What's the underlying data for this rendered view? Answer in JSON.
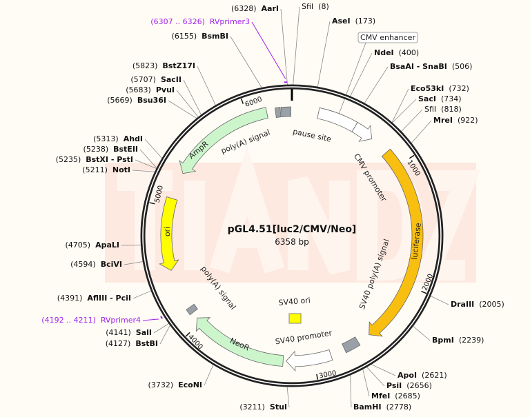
{
  "plasmid": {
    "name": "pGL4.51[luc2/CMV/Neo]",
    "size_label": "6358 bp",
    "length": 6358
  },
  "watermark": "TIANDZ",
  "colors": {
    "ring": "#222222",
    "green": "#ccf5cc",
    "yellow": "#ffff00",
    "luciferase": "#f9bf10",
    "grey": "#9aa0a8",
    "white": "#ffffff",
    "primer": "#a020f0",
    "watermark": "#fde8df"
  },
  "ticks": [
    1000,
    2000,
    3000,
    4000,
    5000,
    6000
  ],
  "features": [
    {
      "label": "CMV enhancer",
      "start": 215,
      "end": 530,
      "direction": "none",
      "color": "white",
      "boxed": true
    },
    {
      "label": "CMV promoter",
      "start": 530,
      "end": 697,
      "direction": "cw",
      "color": "white"
    },
    {
      "label": "luciferase",
      "start": 857,
      "end": 2510,
      "direction": "cw",
      "color": "luciferase"
    },
    {
      "label": "SV40 poly(A) signal",
      "start": 2615,
      "end": 2740,
      "direction": "none",
      "color": "grey"
    },
    {
      "label": "SV40 promoter",
      "start": 2860,
      "end": 3225,
      "direction": "cw",
      "color": "white"
    },
    {
      "label": "NeoR",
      "start": 3250,
      "end": 4045,
      "direction": "cw",
      "color": "green"
    },
    {
      "label": "poly(A) signal",
      "start": 4100,
      "end": 4150,
      "direction": "none",
      "color": "grey"
    },
    {
      "label": "ori",
      "start": 4485,
      "end": 5074,
      "direction": "ccw",
      "color": "yellow"
    },
    {
      "label": "AmpR",
      "start": 5294,
      "end": 6155,
      "direction": "ccw",
      "color": "green"
    },
    {
      "label": "poly(A) signal",
      "start": 6225,
      "end": 6265,
      "direction": "none",
      "color": "grey"
    },
    {
      "label": "pause site",
      "start": 6272,
      "end": 6350,
      "direction": "none",
      "color": "grey"
    }
  ],
  "sv40_ori": {
    "label": "SV40 ori",
    "color": "yellow"
  },
  "primers": [
    {
      "name": "RVprimer3",
      "range": "(6307 .. 6326)",
      "start": 6307,
      "end": 6326
    },
    {
      "name": "RVprimer4",
      "range": "(4192 .. 4211)",
      "start": 4192,
      "end": 4211
    }
  ],
  "sites": [
    {
      "name": "AarI",
      "pos": 6328,
      "bold": true
    },
    {
      "name": "SfiI",
      "pos": 8,
      "bold": false
    },
    {
      "name": "AseI",
      "pos": 173,
      "bold": true
    },
    {
      "name": "NdeI",
      "pos": 400,
      "bold": true
    },
    {
      "name": "BsaAI - SnaBI",
      "pos": 506,
      "bold": true
    },
    {
      "name": "Eco53kI",
      "pos": 732,
      "bold": true
    },
    {
      "name": "SacI",
      "pos": 734,
      "bold": true
    },
    {
      "name": "SfiI",
      "pos": 818,
      "bold": false
    },
    {
      "name": "MreI",
      "pos": 922,
      "bold": true
    },
    {
      "name": "DraIII",
      "pos": 2005,
      "bold": true
    },
    {
      "name": "BpmI",
      "pos": 2239,
      "bold": true
    },
    {
      "name": "ApoI",
      "pos": 2621,
      "bold": true
    },
    {
      "name": "PsiI",
      "pos": 2656,
      "bold": true
    },
    {
      "name": "MfeI",
      "pos": 2685,
      "bold": true
    },
    {
      "name": "BamHI",
      "pos": 2778,
      "bold": true
    },
    {
      "name": "StuI",
      "pos": 3211,
      "bold": true
    },
    {
      "name": "EcoNI",
      "pos": 3732,
      "bold": true
    },
    {
      "name": "BstBI",
      "pos": 4127,
      "bold": true
    },
    {
      "name": "SalI",
      "pos": 4141,
      "bold": true
    },
    {
      "name": "AflIII - PciI",
      "pos": 4391,
      "bold": true
    },
    {
      "name": "BciVI",
      "pos": 4594,
      "bold": true
    },
    {
      "name": "ApaLI",
      "pos": 4705,
      "bold": true
    },
    {
      "name": "NotI",
      "pos": 5211,
      "bold": true
    },
    {
      "name": "BstXI - PstI",
      "pos": 5235,
      "bold": true
    },
    {
      "name": "BstEII",
      "pos": 5238,
      "bold": true
    },
    {
      "name": "AhdI",
      "pos": 5313,
      "bold": true
    },
    {
      "name": "Bsu36I",
      "pos": 5669,
      "bold": true
    },
    {
      "name": "PvuI",
      "pos": 5683,
      "bold": true
    },
    {
      "name": "SacII",
      "pos": 5707,
      "bold": true
    },
    {
      "name": "BstZ17I",
      "pos": 5823,
      "bold": true
    },
    {
      "name": "BsmBI",
      "pos": 6155,
      "bold": true
    }
  ]
}
